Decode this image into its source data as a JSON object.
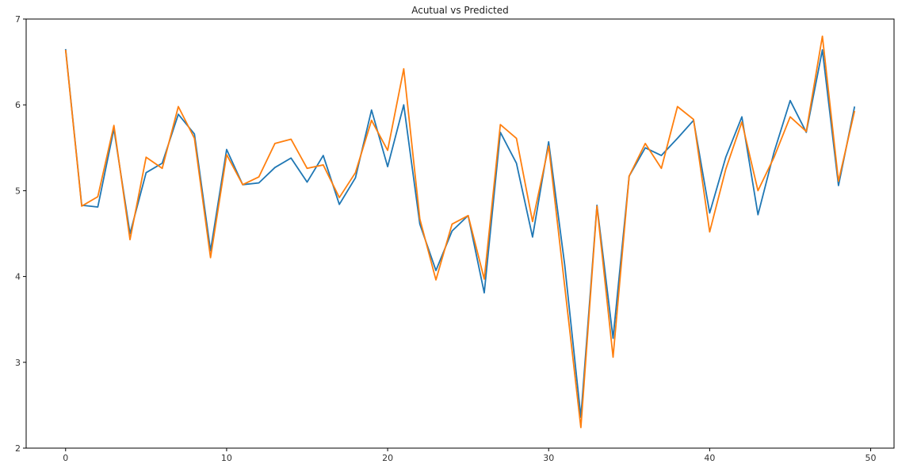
{
  "chart_data": {
    "type": "line",
    "title": "Acutual vs Predicted",
    "xlabel": "",
    "ylabel": "",
    "xlim": [
      -2.45,
      51.45
    ],
    "ylim": [
      2,
      7
    ],
    "xticks": [
      0,
      10,
      20,
      30,
      40,
      50
    ],
    "yticks": [
      2,
      3,
      4,
      5,
      6,
      7
    ],
    "grid": false,
    "x": [
      0,
      1,
      2,
      3,
      4,
      5,
      6,
      7,
      8,
      9,
      10,
      11,
      12,
      13,
      14,
      15,
      16,
      17,
      18,
      19,
      20,
      21,
      22,
      23,
      24,
      25,
      26,
      27,
      28,
      29,
      30,
      31,
      32,
      33,
      34,
      35,
      36,
      37,
      38,
      39,
      40,
      41,
      42,
      43,
      44,
      45,
      46,
      47,
      48,
      49
    ],
    "series": [
      {
        "color": "#1f77b4",
        "values": [
          6.65,
          4.83,
          4.81,
          5.72,
          4.5,
          5.21,
          5.32,
          5.89,
          5.66,
          4.3,
          5.48,
          5.07,
          5.09,
          5.27,
          5.38,
          5.1,
          5.41,
          4.84,
          5.15,
          5.94,
          5.28,
          6.0,
          4.61,
          4.07,
          4.53,
          4.71,
          3.81,
          5.68,
          5.32,
          4.46,
          5.57,
          4.13,
          2.36,
          4.83,
          3.28,
          5.17,
          5.5,
          5.41,
          5.61,
          5.82,
          4.74,
          5.39,
          5.86,
          4.72,
          5.45,
          6.05,
          5.68,
          6.64,
          5.06,
          5.98
        ]
      },
      {
        "color": "#ff7f0e",
        "values": [
          6.64,
          4.82,
          4.93,
          5.76,
          4.43,
          5.39,
          5.26,
          5.98,
          5.61,
          4.22,
          5.42,
          5.07,
          5.16,
          5.55,
          5.6,
          5.26,
          5.3,
          4.92,
          5.21,
          5.82,
          5.47,
          6.42,
          4.67,
          3.96,
          4.61,
          4.71,
          3.97,
          5.77,
          5.61,
          4.64,
          5.52,
          3.88,
          2.24,
          4.82,
          3.06,
          5.17,
          5.55,
          5.26,
          5.98,
          5.83,
          4.52,
          5.25,
          5.8,
          5.0,
          5.39,
          5.86,
          5.69,
          6.8,
          5.11,
          5.93
        ]
      }
    ]
  }
}
